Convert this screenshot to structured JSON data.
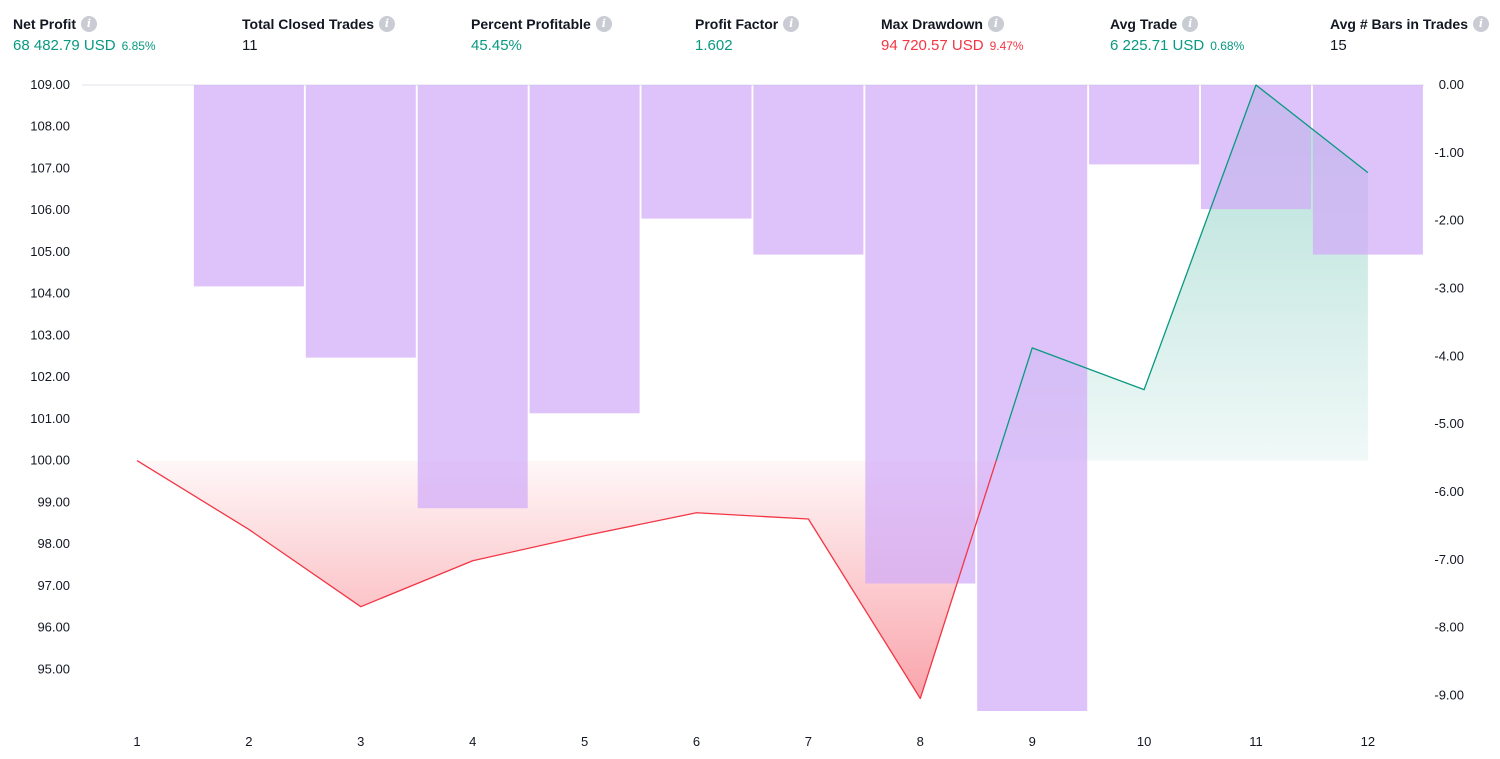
{
  "colors": {
    "positive": "#089981",
    "negative": "#f23645",
    "bars": "#d1aaf8",
    "text": "#131722",
    "icon": "#c9ccd3"
  },
  "stats": [
    {
      "title": "Net Profit",
      "value": "68 482.79 USD",
      "pct": "6.85%",
      "tone": "positive"
    },
    {
      "title": "Total Closed Trades",
      "value": "11",
      "pct": "",
      "tone": "neutral"
    },
    {
      "title": "Percent Profitable",
      "value": "45.45%",
      "pct": "",
      "tone": "positive"
    },
    {
      "title": "Profit Factor",
      "value": "1.602",
      "pct": "",
      "tone": "positive"
    },
    {
      "title": "Max Drawdown",
      "value": "94 720.57 USD",
      "pct": "9.47%",
      "tone": "negative"
    },
    {
      "title": "Avg Trade",
      "value": "6 225.71 USD",
      "pct": "0.68%",
      "tone": "positive"
    },
    {
      "title": "Avg # Bars in Trades",
      "value": "15",
      "pct": "",
      "tone": "neutral"
    }
  ],
  "chart_data": {
    "type": "line+bar",
    "x": [
      1,
      2,
      3,
      4,
      5,
      6,
      7,
      8,
      9,
      10,
      11,
      12
    ],
    "equity": {
      "axis": "left",
      "baseline": 100,
      "values": [
        100.0,
        98.35,
        96.5,
        97.6,
        98.2,
        98.75,
        98.6,
        94.3,
        102.7,
        101.7,
        109.0,
        106.9
      ]
    },
    "drawdown": {
      "axis": "right",
      "values": [
        null,
        -2.97,
        -4.02,
        -6.24,
        -4.84,
        -1.97,
        -2.5,
        -7.35,
        -9.23,
        -1.17,
        -1.83,
        -2.5
      ]
    },
    "left_axis": {
      "ticks": [
        "109.00",
        "108.00",
        "107.00",
        "106.00",
        "105.00",
        "104.00",
        "103.00",
        "102.00",
        "101.00",
        "100.00",
        "99.00",
        "98.00",
        "97.00",
        "96.00",
        "95.00"
      ],
      "range": [
        94.0,
        109.0
      ]
    },
    "right_axis": {
      "ticks": [
        "0.00",
        "-1.00",
        "-2.00",
        "-3.00",
        "-4.00",
        "-5.00",
        "-6.00",
        "-7.00",
        "-8.00",
        "-9.00"
      ],
      "range": [
        -9.23,
        0
      ]
    },
    "x_ticks": [
      "1",
      "2",
      "3",
      "4",
      "5",
      "6",
      "7",
      "8",
      "9",
      "10",
      "11",
      "12"
    ]
  }
}
